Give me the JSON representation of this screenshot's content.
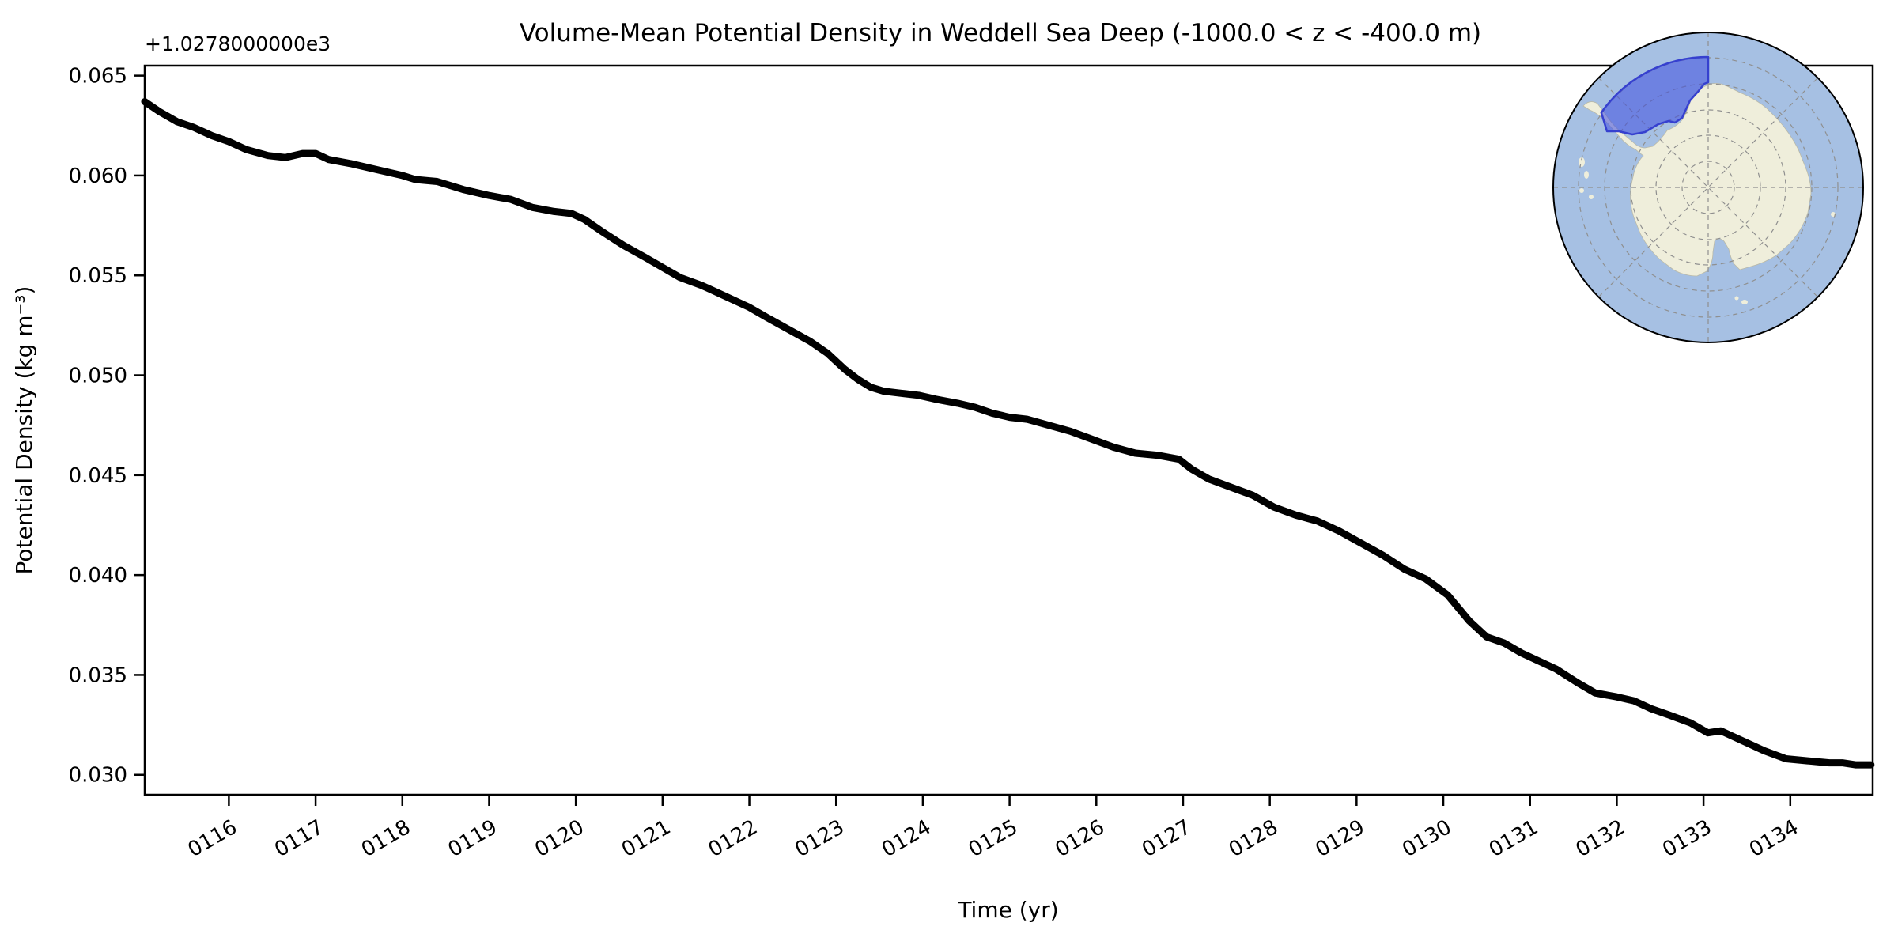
{
  "figure": {
    "title": "Volume-Mean Potential Density in Weddell Sea Deep (-1000.0 < z < -400.0 m)",
    "offset_text": "+1.0278000000e3",
    "xlabel": "Time (yr)",
    "ylabel": "Potential Density (kg m⁻³)",
    "background_color": "#ffffff",
    "line_color": "#000000"
  },
  "chart_data": {
    "type": "line",
    "title": "Volume-Mean Potential Density in Weddell Sea Deep (-1000.0 < z < -400.0 m)",
    "xlabel": "Time (yr)",
    "ylabel": "Potential Density (kg m⁻³)",
    "y_axis_offset_text": "+1.0278000000e3",
    "y_axis_offset_value": 1027.8,
    "grid": false,
    "legend": "none",
    "xlim": [
      115.03,
      134.95
    ],
    "ylim": [
      0.029,
      0.0655
    ],
    "x_ticks": {
      "values": [
        116,
        117,
        118,
        119,
        120,
        121,
        122,
        123,
        124,
        125,
        126,
        127,
        128,
        129,
        130,
        131,
        132,
        133,
        134
      ],
      "labels": [
        "0116",
        "0117",
        "0118",
        "0119",
        "0120",
        "0121",
        "0122",
        "0123",
        "0124",
        "0125",
        "0126",
        "0127",
        "0128",
        "0129",
        "0130",
        "0131",
        "0132",
        "0133",
        "0134"
      ],
      "rotation_deg": -30
    },
    "y_ticks": {
      "values": [
        0.03,
        0.035,
        0.04,
        0.045,
        0.05,
        0.055,
        0.06,
        0.065
      ],
      "labels": [
        "0.030",
        "0.035",
        "0.040",
        "0.045",
        "0.050",
        "0.055",
        "0.060",
        "0.065"
      ]
    },
    "series": [
      {
        "name": "volume-mean potential density",
        "color": "#000000",
        "linewidth": 9,
        "x": [
          115.03,
          115.2,
          115.4,
          115.6,
          115.8,
          116.0,
          116.2,
          116.45,
          116.65,
          116.85,
          117.0,
          117.15,
          117.4,
          117.7,
          118.0,
          118.15,
          118.4,
          118.7,
          119.0,
          119.25,
          119.5,
          119.75,
          119.95,
          120.1,
          120.3,
          120.55,
          120.8,
          121.0,
          121.2,
          121.45,
          121.6,
          121.8,
          122.0,
          122.2,
          122.45,
          122.7,
          122.9,
          123.1,
          123.25,
          123.4,
          123.55,
          123.75,
          123.95,
          124.15,
          124.4,
          124.6,
          124.8,
          125.0,
          125.2,
          125.45,
          125.7,
          125.95,
          126.2,
          126.45,
          126.7,
          126.95,
          127.1,
          127.3,
          127.55,
          127.8,
          128.05,
          128.3,
          128.55,
          128.8,
          129.05,
          129.3,
          129.55,
          129.8,
          130.05,
          130.3,
          130.5,
          130.7,
          130.9,
          131.1,
          131.3,
          131.55,
          131.75,
          132.0,
          132.2,
          132.4,
          132.6,
          132.85,
          133.05,
          133.2,
          133.45,
          133.7,
          133.95,
          134.2,
          134.45,
          134.6,
          134.75,
          134.93
        ],
        "y": [
          0.0637,
          0.0632,
          0.0627,
          0.0624,
          0.062,
          0.0617,
          0.0613,
          0.061,
          0.0609,
          0.0611,
          0.0611,
          0.0608,
          0.0606,
          0.0603,
          0.06,
          0.0598,
          0.0597,
          0.0593,
          0.059,
          0.0588,
          0.0584,
          0.0582,
          0.0581,
          0.0578,
          0.0572,
          0.0565,
          0.0559,
          0.0554,
          0.0549,
          0.0545,
          0.0542,
          0.0538,
          0.0534,
          0.0529,
          0.0523,
          0.0517,
          0.0511,
          0.0503,
          0.0498,
          0.0494,
          0.0492,
          0.0491,
          0.049,
          0.0488,
          0.0486,
          0.0484,
          0.0481,
          0.0479,
          0.0478,
          0.0475,
          0.0472,
          0.0468,
          0.0464,
          0.0461,
          0.046,
          0.0458,
          0.0453,
          0.0448,
          0.0444,
          0.044,
          0.0434,
          0.043,
          0.0427,
          0.0422,
          0.0416,
          0.041,
          0.0403,
          0.0398,
          0.039,
          0.0377,
          0.0369,
          0.0366,
          0.0361,
          0.0357,
          0.0353,
          0.0346,
          0.0341,
          0.0339,
          0.0337,
          0.0333,
          0.033,
          0.0326,
          0.0321,
          0.0322,
          0.0317,
          0.0312,
          0.0308,
          0.0307,
          0.0306,
          0.0306,
          0.0305,
          0.0305
        ]
      }
    ]
  },
  "inset_map": {
    "projection": "south-polar-stereographic",
    "highlighted_region": "Weddell Sea",
    "colors": {
      "ocean": "#a6c0e3",
      "land": "#efeedb",
      "region_fill": "#404ee0",
      "region_edge": "#3640cf",
      "graticule": "#8f8f8f",
      "border": "#000000"
    }
  }
}
